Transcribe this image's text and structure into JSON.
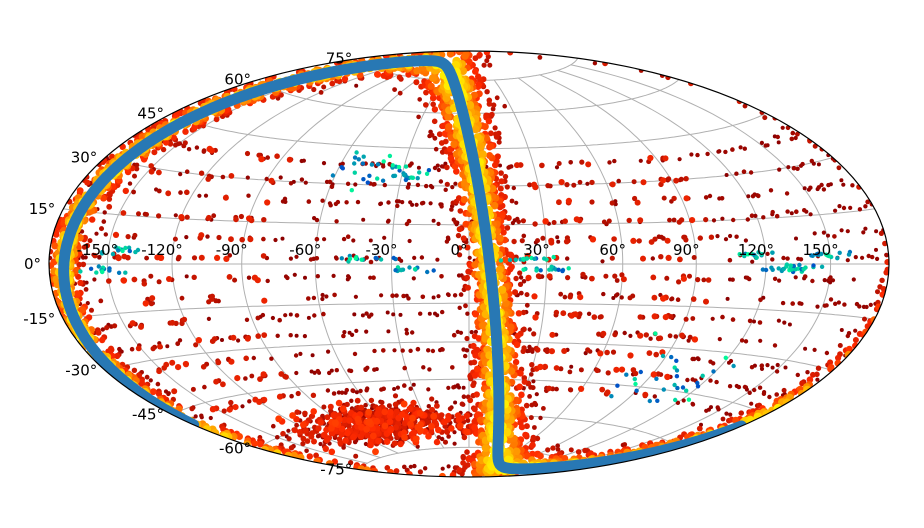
{
  "map": {
    "projection": "Aitoff/Hammer",
    "grid": true,
    "colors": {
      "density_low": "#8b0000",
      "density_mid": "#ff2a00",
      "density_high": "#ffee00",
      "sparse_low": "#0050c8",
      "sparse_high": "#00ff96",
      "great_circle": "#2878b4"
    },
    "lon_ticks": [
      "-150°",
      "-120°",
      "-90°",
      "-60°",
      "-30°",
      "0°",
      "30°",
      "60°",
      "90°",
      "120°",
      "150°"
    ],
    "lat_ticks": [
      "-75°",
      "-60°",
      "-45°",
      "-30°",
      "-15°",
      "0°",
      "15°",
      "30°",
      "45°",
      "60°",
      "75°"
    ]
  }
}
